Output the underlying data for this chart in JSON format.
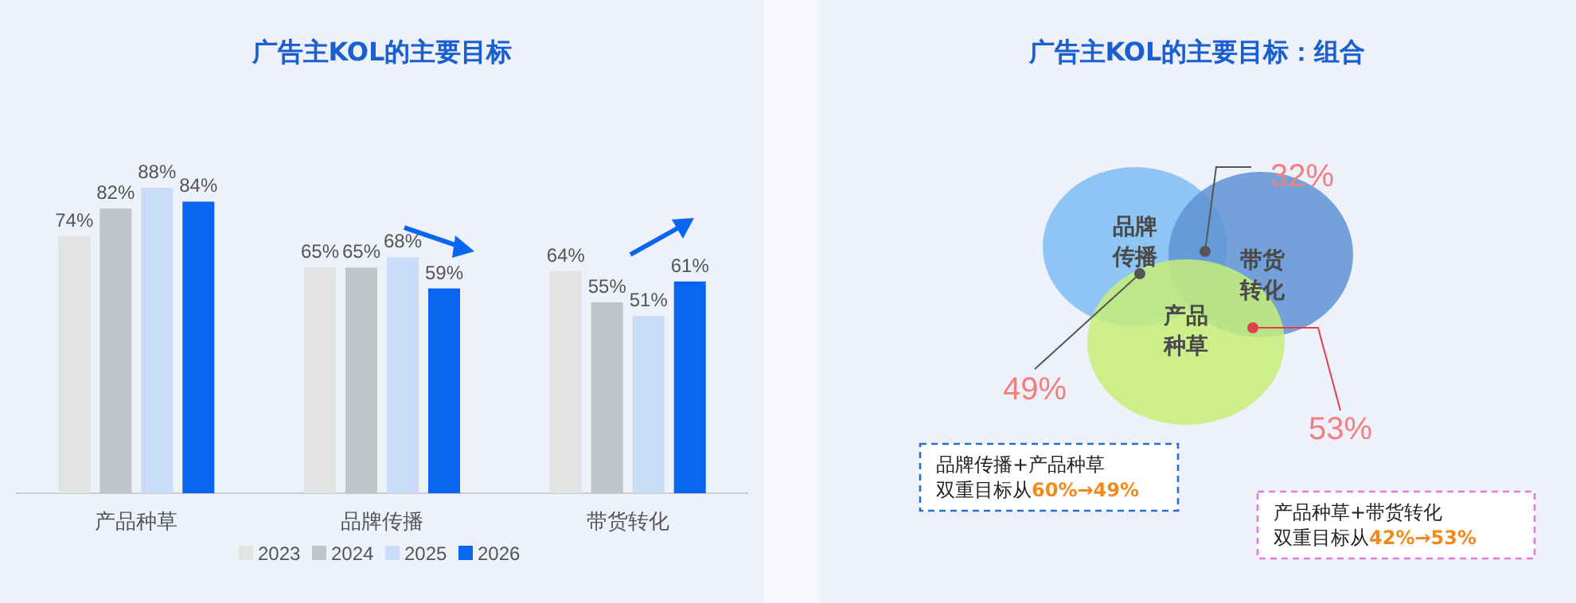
{
  "chart_data": [
    {
      "type": "bar",
      "title": "广告主KOL的主要目标",
      "categories": [
        "产品种草",
        "品牌传播",
        "带货转化"
      ],
      "series": [
        {
          "name": "2023",
          "color": "#e2e3e3",
          "values": [
            74,
            65,
            64
          ],
          "value_labels": [
            "74%",
            "65%",
            "64%"
          ]
        },
        {
          "name": "2024",
          "color": "#c2c5c7",
          "values": [
            82,
            65,
            55
          ],
          "value_labels": [
            "82%",
            "65%",
            "55%"
          ]
        },
        {
          "name": "2025",
          "color": "#c9dcf8",
          "values": [
            88,
            68,
            51
          ],
          "value_labels": [
            "88%",
            "68%",
            "51%"
          ]
        },
        {
          "name": "2026",
          "color": "#0a66f0",
          "values": [
            84,
            59,
            61
          ],
          "value_labels": [
            "84%",
            "59%",
            "61%"
          ]
        }
      ],
      "legend": "bottom"
    },
    {
      "type": "other",
      "title": "广告主KOL的主要目标：组合",
      "categories": [
        "品牌传播",
        "带货转化",
        "产品种草"
      ],
      "annotations": [
        "32%",
        "49%",
        "53%",
        "品牌传播+产品种草",
        "双重目标从60%→49%",
        "产品种草+带货转化",
        "双重目标从42%→53%"
      ]
    }
  ]
}
